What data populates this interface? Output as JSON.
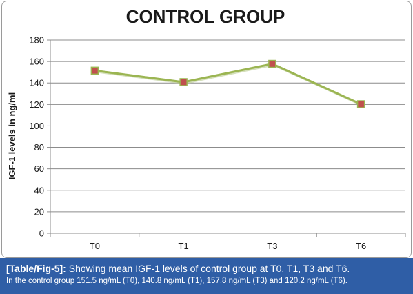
{
  "colors": {
    "line": "#9bb552",
    "line_shadow": "#b8c98c",
    "marker_fill": "#c0504d",
    "marker_edge": "#9bb552",
    "grid": "#8c8c8c",
    "caption_bg": "#2f5ea6"
  },
  "chart_data": {
    "type": "line",
    "title": "CONTROL GROUP",
    "xlabel": "",
    "ylabel": "IGF-1 levels in ng/ml",
    "categories": [
      "T0",
      "T1",
      "T3",
      "T6"
    ],
    "series": [
      {
        "values": [
          151.5,
          140.8,
          157.8,
          120.2
        ]
      }
    ],
    "ylim": [
      0,
      180
    ],
    "yticks": [
      0,
      20,
      40,
      60,
      80,
      100,
      120,
      140,
      160,
      180
    ],
    "grid": true,
    "legend": "none",
    "marker": "square"
  },
  "caption": {
    "tag": "[Table/Fig-5]:",
    "text": " Showing mean IGF-1 levels of control group at T0, T1, T3 and T6.",
    "detail": "In the control group 151.5 ng/mL (T0), 140.8 ng/mL (T1), 157.8 ng/mL (T3) and 120.2 ng/mL (T6)."
  }
}
